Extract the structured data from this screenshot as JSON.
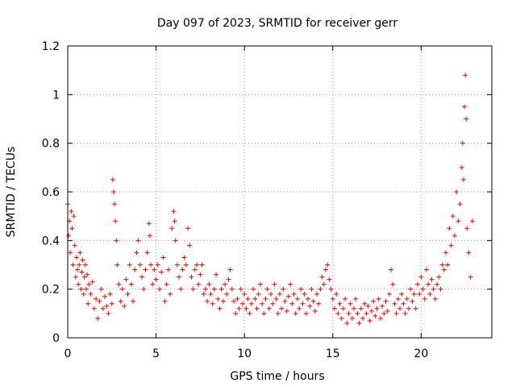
{
  "chart_data": {
    "type": "scatter",
    "title": "Day 097 of 2023, SRMTID for receiver gerr",
    "xlabel": "GPS time / hours",
    "ylabel": "SRMTID / TECUs",
    "xlim": [
      0,
      24
    ],
    "ylim": [
      0,
      1.2
    ],
    "x_ticks": [
      0,
      5,
      10,
      15,
      20
    ],
    "y_ticks": [
      0,
      0.2,
      0.4,
      0.6,
      0.8,
      1.0,
      1.2
    ],
    "x_tick_labels": [
      "0",
      "5",
      "10",
      "15",
      "20"
    ],
    "y_tick_labels": [
      "0",
      "0.2",
      "0.4",
      "0.6",
      "0.8",
      "1",
      "1.2"
    ],
    "grid": true,
    "marker": "plus",
    "color": "#ff0000",
    "series": [
      {
        "name": "SRMTID",
        "points": [
          [
            0.0,
            0.55
          ],
          [
            0.05,
            0.42
          ],
          [
            0.1,
            0.48
          ],
          [
            0.15,
            0.35
          ],
          [
            0.2,
            0.52
          ],
          [
            0.25,
            0.45
          ],
          [
            0.3,
            0.3
          ],
          [
            0.35,
            0.5
          ],
          [
            0.4,
            0.38
          ],
          [
            0.45,
            0.25
          ],
          [
            0.5,
            0.33
          ],
          [
            0.55,
            0.28
          ],
          [
            0.6,
            0.22
          ],
          [
            0.65,
            0.3
          ],
          [
            0.7,
            0.35
          ],
          [
            0.75,
            0.2
          ],
          [
            0.8,
            0.27
          ],
          [
            0.85,
            0.32
          ],
          [
            0.9,
            0.18
          ],
          [
            0.95,
            0.25
          ],
          [
            1.0,
            0.3
          ],
          [
            1.05,
            0.2
          ],
          [
            1.1,
            0.26
          ],
          [
            1.15,
            0.14
          ],
          [
            1.2,
            0.22
          ],
          [
            1.3,
            0.18
          ],
          [
            1.4,
            0.23
          ],
          [
            1.5,
            0.12
          ],
          [
            1.6,
            0.16
          ],
          [
            1.7,
            0.08
          ],
          [
            1.8,
            0.15
          ],
          [
            1.9,
            0.2
          ],
          [
            2.0,
            0.12
          ],
          [
            2.1,
            0.17
          ],
          [
            2.2,
            0.13
          ],
          [
            2.3,
            0.1
          ],
          [
            2.4,
            0.18
          ],
          [
            2.5,
            0.14
          ],
          [
            2.55,
            0.65
          ],
          [
            2.6,
            0.6
          ],
          [
            2.65,
            0.55
          ],
          [
            2.7,
            0.48
          ],
          [
            2.75,
            0.4
          ],
          [
            2.8,
            0.3
          ],
          [
            2.9,
            0.22
          ],
          [
            3.0,
            0.15
          ],
          [
            3.1,
            0.2
          ],
          [
            3.2,
            0.13
          ],
          [
            3.3,
            0.24
          ],
          [
            3.4,
            0.18
          ],
          [
            3.5,
            0.3
          ],
          [
            3.6,
            0.22
          ],
          [
            3.7,
            0.15
          ],
          [
            3.8,
            0.28
          ],
          [
            3.9,
            0.35
          ],
          [
            4.0,
            0.4
          ],
          [
            4.1,
            0.3
          ],
          [
            4.2,
            0.25
          ],
          [
            4.3,
            0.2
          ],
          [
            4.4,
            0.28
          ],
          [
            4.5,
            0.35
          ],
          [
            4.6,
            0.47
          ],
          [
            4.65,
            0.42
          ],
          [
            4.7,
            0.3
          ],
          [
            4.8,
            0.22
          ],
          [
            4.9,
            0.28
          ],
          [
            5.0,
            0.24
          ],
          [
            5.1,
            0.3
          ],
          [
            5.2,
            0.2
          ],
          [
            5.3,
            0.27
          ],
          [
            5.4,
            0.33
          ],
          [
            5.5,
            0.15
          ],
          [
            5.6,
            0.22
          ],
          [
            5.7,
            0.28
          ],
          [
            5.8,
            0.18
          ],
          [
            5.9,
            0.45
          ],
          [
            6.0,
            0.52
          ],
          [
            6.05,
            0.48
          ],
          [
            6.1,
            0.4
          ],
          [
            6.2,
            0.3
          ],
          [
            6.3,
            0.25
          ],
          [
            6.4,
            0.2
          ],
          [
            6.5,
            0.28
          ],
          [
            6.6,
            0.33
          ],
          [
            6.7,
            0.3
          ],
          [
            6.8,
            0.45
          ],
          [
            6.9,
            0.38
          ],
          [
            7.0,
            0.25
          ],
          [
            7.1,
            0.2
          ],
          [
            7.2,
            0.28
          ],
          [
            7.3,
            0.3
          ],
          [
            7.4,
            0.22
          ],
          [
            7.5,
            0.26
          ],
          [
            7.6,
            0.3
          ],
          [
            7.7,
            0.18
          ],
          [
            7.8,
            0.2
          ],
          [
            7.9,
            0.15
          ],
          [
            8.0,
            0.22
          ],
          [
            8.1,
            0.18
          ],
          [
            8.2,
            0.14
          ],
          [
            8.3,
            0.2
          ],
          [
            8.4,
            0.26
          ],
          [
            8.5,
            0.16
          ],
          [
            8.6,
            0.12
          ],
          [
            8.7,
            0.2
          ],
          [
            8.8,
            0.15
          ],
          [
            8.9,
            0.22
          ],
          [
            9.0,
            0.18
          ],
          [
            9.1,
            0.24
          ],
          [
            9.2,
            0.28
          ],
          [
            9.3,
            0.2
          ],
          [
            9.4,
            0.15
          ],
          [
            9.5,
            0.1
          ],
          [
            9.6,
            0.16
          ],
          [
            9.7,
            0.12
          ],
          [
            9.8,
            0.2
          ],
          [
            9.9,
            0.14
          ],
          [
            10.0,
            0.18
          ],
          [
            10.1,
            0.12
          ],
          [
            10.2,
            0.16
          ],
          [
            10.3,
            0.1
          ],
          [
            10.4,
            0.14
          ],
          [
            10.5,
            0.2
          ],
          [
            10.6,
            0.16
          ],
          [
            10.7,
            0.12
          ],
          [
            10.8,
            0.18
          ],
          [
            10.9,
            0.22
          ],
          [
            11.0,
            0.14
          ],
          [
            11.1,
            0.1
          ],
          [
            11.2,
            0.16
          ],
          [
            11.3,
            0.2
          ],
          [
            11.4,
            0.12
          ],
          [
            11.5,
            0.18
          ],
          [
            11.6,
            0.14
          ],
          [
            11.7,
            0.22
          ],
          [
            11.8,
            0.16
          ],
          [
            11.9,
            0.1
          ],
          [
            12.0,
            0.18
          ],
          [
            12.1,
            0.12
          ],
          [
            12.2,
            0.2
          ],
          [
            12.3,
            0.15
          ],
          [
            12.4,
            0.11
          ],
          [
            12.5,
            0.17
          ],
          [
            12.6,
            0.22
          ],
          [
            12.7,
            0.14
          ],
          [
            12.8,
            0.18
          ],
          [
            12.9,
            0.1
          ],
          [
            13.0,
            0.16
          ],
          [
            13.1,
            0.12
          ],
          [
            13.2,
            0.2
          ],
          [
            13.3,
            0.14
          ],
          [
            13.4,
            0.18
          ],
          [
            13.5,
            0.1
          ],
          [
            13.6,
            0.16
          ],
          [
            13.7,
            0.13
          ],
          [
            13.8,
            0.2
          ],
          [
            13.9,
            0.15
          ],
          [
            14.0,
            0.11
          ],
          [
            14.1,
            0.18
          ],
          [
            14.2,
            0.14
          ],
          [
            14.3,
            0.2
          ],
          [
            14.4,
            0.25
          ],
          [
            14.5,
            0.22
          ],
          [
            14.6,
            0.28
          ],
          [
            14.7,
            0.3
          ],
          [
            14.8,
            0.24
          ],
          [
            14.9,
            0.2
          ],
          [
            15.0,
            0.16
          ],
          [
            15.1,
            0.12
          ],
          [
            15.2,
            0.18
          ],
          [
            15.3,
            0.1
          ],
          [
            15.4,
            0.14
          ],
          [
            15.5,
            0.08
          ],
          [
            15.6,
            0.12
          ],
          [
            15.7,
            0.16
          ],
          [
            15.8,
            0.06
          ],
          [
            15.9,
            0.1
          ],
          [
            16.0,
            0.14
          ],
          [
            16.1,
            0.08
          ],
          [
            16.2,
            0.12
          ],
          [
            16.3,
            0.16
          ],
          [
            16.4,
            0.1
          ],
          [
            16.5,
            0.06
          ],
          [
            16.6,
            0.12
          ],
          [
            16.7,
            0.08
          ],
          [
            16.8,
            0.14
          ],
          [
            16.9,
            0.1
          ],
          [
            17.0,
            0.13
          ],
          [
            17.1,
            0.07
          ],
          [
            17.2,
            0.11
          ],
          [
            17.3,
            0.15
          ],
          [
            17.4,
            0.09
          ],
          [
            17.5,
            0.12
          ],
          [
            17.6,
            0.16
          ],
          [
            17.7,
            0.08
          ],
          [
            17.8,
            0.13
          ],
          [
            17.9,
            0.1
          ],
          [
            18.0,
            0.15
          ],
          [
            18.1,
            0.11
          ],
          [
            18.2,
            0.18
          ],
          [
            18.3,
            0.28
          ],
          [
            18.4,
            0.22
          ],
          [
            18.5,
            0.14
          ],
          [
            18.6,
            0.1
          ],
          [
            18.7,
            0.16
          ],
          [
            18.8,
            0.12
          ],
          [
            18.9,
            0.18
          ],
          [
            19.0,
            0.14
          ],
          [
            19.1,
            0.1
          ],
          [
            19.2,
            0.16
          ],
          [
            19.3,
            0.12
          ],
          [
            19.4,
            0.2
          ],
          [
            19.5,
            0.15
          ],
          [
            19.6,
            0.18
          ],
          [
            19.7,
            0.12
          ],
          [
            19.8,
            0.22
          ],
          [
            19.9,
            0.18
          ],
          [
            20.0,
            0.25
          ],
          [
            20.1,
            0.2
          ],
          [
            20.2,
            0.16
          ],
          [
            20.3,
            0.28
          ],
          [
            20.4,
            0.22
          ],
          [
            20.5,
            0.18
          ],
          [
            20.6,
            0.24
          ],
          [
            20.7,
            0.2
          ],
          [
            20.8,
            0.16
          ],
          [
            20.9,
            0.22
          ],
          [
            21.0,
            0.25
          ],
          [
            21.1,
            0.2
          ],
          [
            21.2,
            0.3
          ],
          [
            21.3,
            0.28
          ],
          [
            21.4,
            0.35
          ],
          [
            21.5,
            0.3
          ],
          [
            21.6,
            0.45
          ],
          [
            21.7,
            0.38
          ],
          [
            21.8,
            0.5
          ],
          [
            21.9,
            0.42
          ],
          [
            22.0,
            0.6
          ],
          [
            22.1,
            0.48
          ],
          [
            22.2,
            0.55
          ],
          [
            22.3,
            0.7
          ],
          [
            22.35,
            0.8
          ],
          [
            22.4,
            0.65
          ],
          [
            22.45,
            0.95
          ],
          [
            22.5,
            1.08
          ],
          [
            22.55,
            0.9
          ],
          [
            22.6,
            0.45
          ],
          [
            22.7,
            0.35
          ],
          [
            22.8,
            0.25
          ],
          [
            22.9,
            0.48
          ]
        ]
      }
    ]
  }
}
